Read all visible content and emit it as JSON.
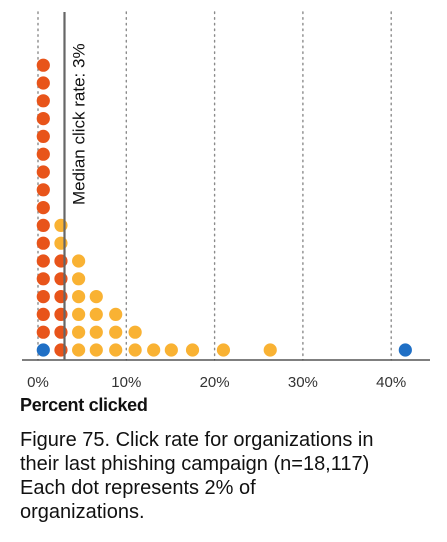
{
  "chart_data": {
    "type": "dot-histogram",
    "x_tick_labels": [
      "0%",
      "10%",
      "20%",
      "30%",
      "40%"
    ],
    "x_ticks": [
      0,
      10,
      20,
      30,
      40
    ],
    "xlim": [
      -0.5,
      43.5
    ],
    "xlabel": "Percent clicked",
    "grid": "vertical dotted",
    "median": {
      "value": 3,
      "label": "Median click rate: 3%"
    },
    "dot_unit_label": "Each dot represents 2% of organizations.",
    "columns": [
      {
        "x": 0.6,
        "count": 17,
        "colors": [
          "#1f6fc5",
          "#e8541a",
          "#e8541a",
          "#e8541a",
          "#e8541a",
          "#e8541a",
          "#e8541a",
          "#e8541a",
          "#e8541a",
          "#e8541a",
          "#e8541a",
          "#e8541a",
          "#e8541a",
          "#e8541a",
          "#e8541a",
          "#e8541a",
          "#e8541a"
        ]
      },
      {
        "x": 2.6,
        "count": 8,
        "colors": [
          "#e8541a",
          "#e8541a",
          "#e8541a",
          "#e8541a",
          "#e8541a",
          "#e8541a",
          "#f9b233",
          "#f9b233"
        ]
      },
      {
        "x": 4.6,
        "count": 6,
        "color": "#f9b233"
      },
      {
        "x": 6.6,
        "count": 4,
        "color": "#f9b233"
      },
      {
        "x": 8.8,
        "count": 3,
        "color": "#f9b233"
      },
      {
        "x": 11.0,
        "count": 2,
        "color": "#f9b233"
      },
      {
        "x": 13.1,
        "count": 1,
        "color": "#f9b233"
      },
      {
        "x": 15.1,
        "count": 1,
        "color": "#f9b233"
      },
      {
        "x": 17.5,
        "count": 1,
        "color": "#f9b233"
      },
      {
        "x": 21.0,
        "count": 1,
        "color": "#f9b233"
      },
      {
        "x": 26.3,
        "count": 1,
        "color": "#f9b233"
      },
      {
        "x": 41.6,
        "count": 1,
        "color": "#1f6fc5"
      }
    ],
    "colors": {
      "red": "#e8541a",
      "orange": "#f9b233",
      "blue": "#1f6fc5",
      "median_line": "#666666"
    }
  },
  "caption_lines": [
    "Figure 75. Click rate for organizations in",
    "their last phishing campaign (n=18,117)",
    "Each dot represents 2% of",
    "organizations."
  ]
}
